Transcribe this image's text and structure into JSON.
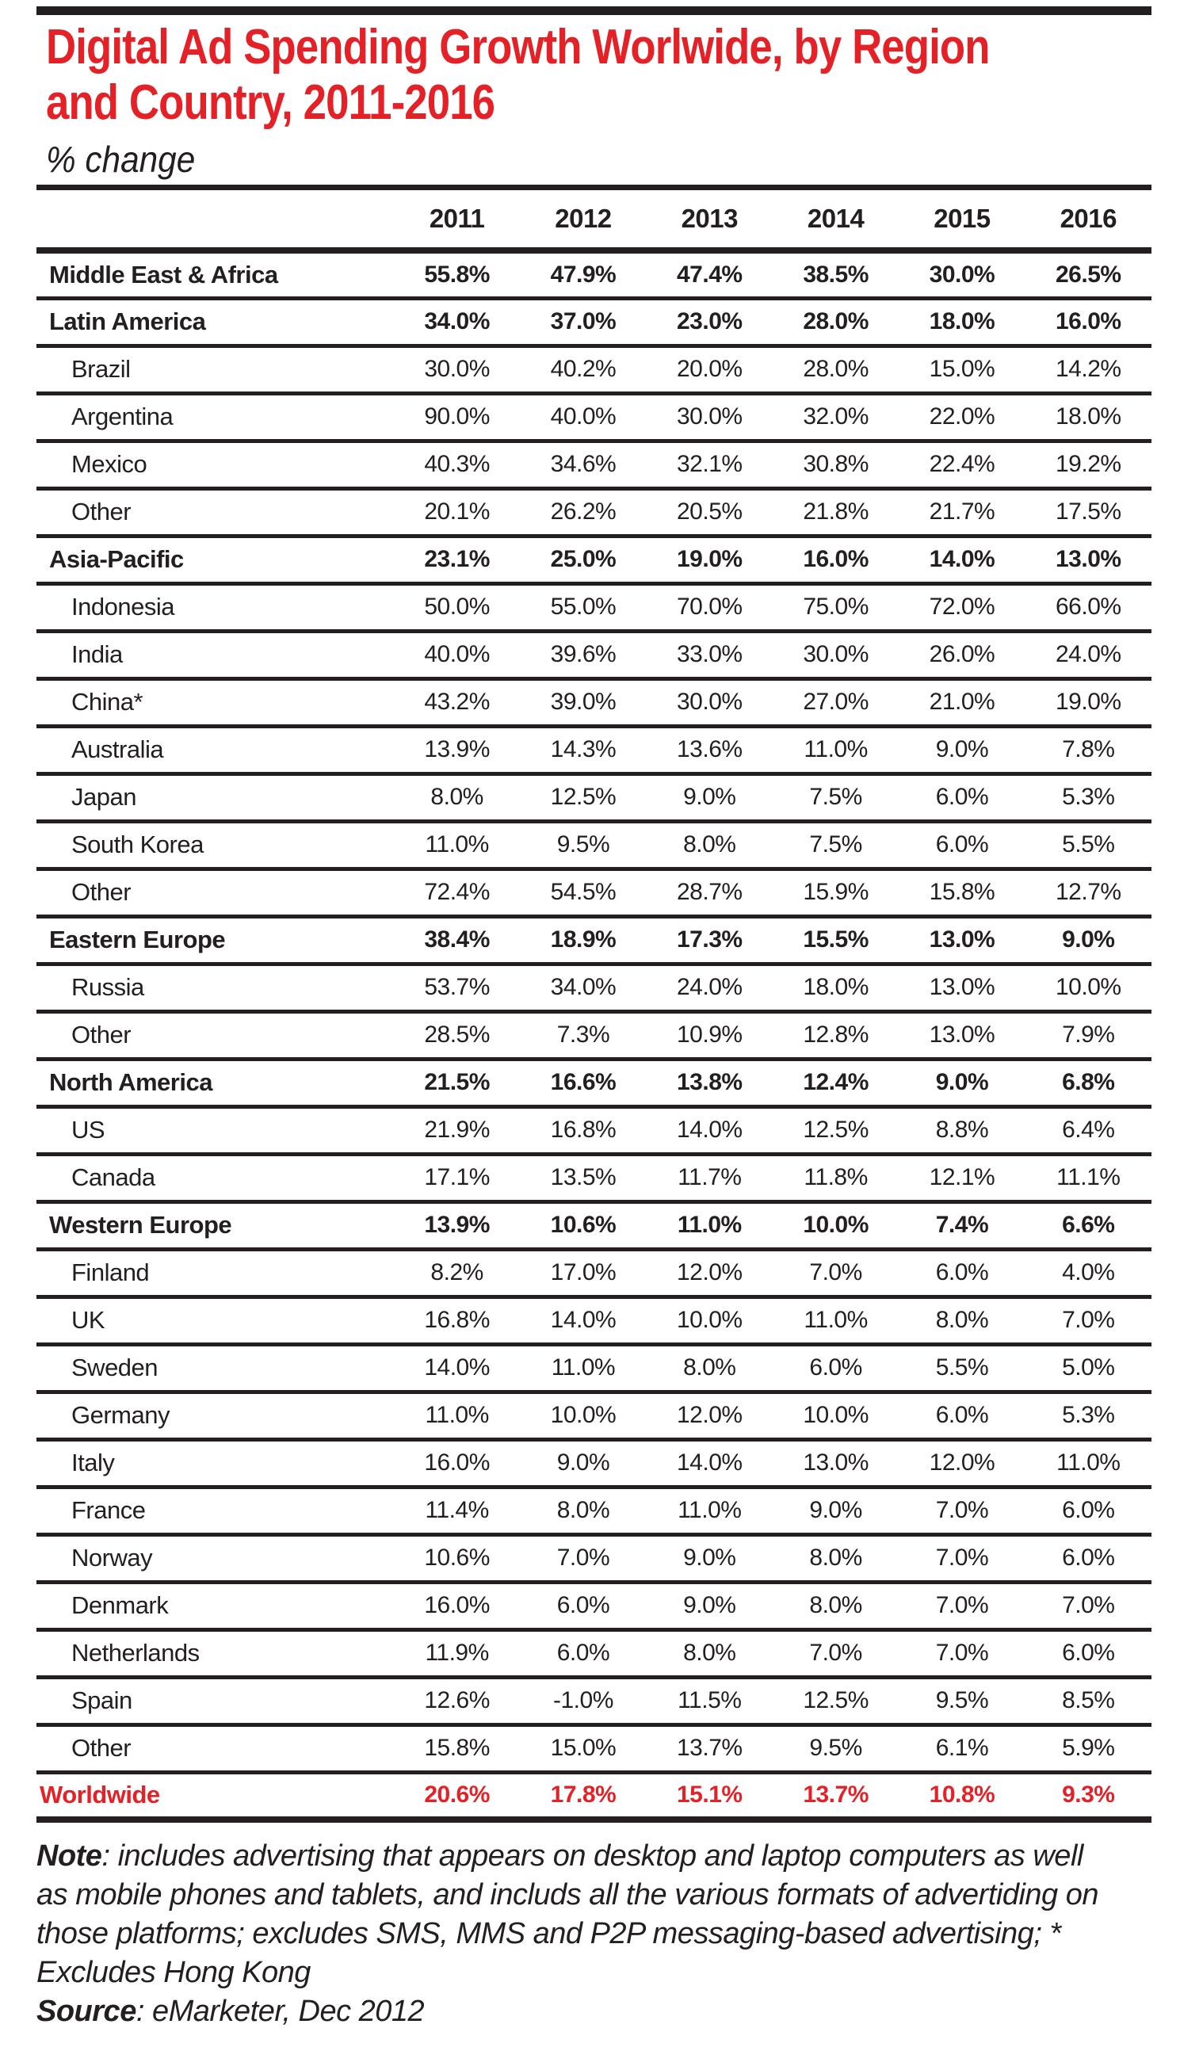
{
  "title": {
    "line1": "Digital Ad Spending Growth Worlwide, by Region",
    "line2": "and Country, 2011-2016"
  },
  "subtitle": "% change",
  "colors": {
    "accent_red": "#e32127",
    "text_black": "#231f20"
  },
  "chart_data": {
    "type": "table",
    "title": "Digital Ad Spending Growth Worlwide, by Region and Country, 2011-2016",
    "unit": "% change",
    "columns": [
      "2011",
      "2012",
      "2013",
      "2014",
      "2015",
      "2016"
    ],
    "rows": [
      {
        "label": "Middle East & Africa",
        "style": "region",
        "values": [
          "55.8%",
          "47.9%",
          "47.4%",
          "38.5%",
          "30.0%",
          "26.5%"
        ]
      },
      {
        "label": "Latin America",
        "style": "region",
        "values": [
          "34.0%",
          "37.0%",
          "23.0%",
          "28.0%",
          "18.0%",
          "16.0%"
        ]
      },
      {
        "label": "Brazil",
        "style": "country",
        "values": [
          "30.0%",
          "40.2%",
          "20.0%",
          "28.0%",
          "15.0%",
          "14.2%"
        ]
      },
      {
        "label": "Argentina",
        "style": "country",
        "values": [
          "90.0%",
          "40.0%",
          "30.0%",
          "32.0%",
          "22.0%",
          "18.0%"
        ]
      },
      {
        "label": "Mexico",
        "style": "country",
        "values": [
          "40.3%",
          "34.6%",
          "32.1%",
          "30.8%",
          "22.4%",
          "19.2%"
        ]
      },
      {
        "label": "Other",
        "style": "country",
        "values": [
          "20.1%",
          "26.2%",
          "20.5%",
          "21.8%",
          "21.7%",
          "17.5%"
        ]
      },
      {
        "label": "Asia-Pacific",
        "style": "region",
        "values": [
          "23.1%",
          "25.0%",
          "19.0%",
          "16.0%",
          "14.0%",
          "13.0%"
        ]
      },
      {
        "label": "Indonesia",
        "style": "country",
        "values": [
          "50.0%",
          "55.0%",
          "70.0%",
          "75.0%",
          "72.0%",
          "66.0%"
        ]
      },
      {
        "label": "India",
        "style": "country",
        "values": [
          "40.0%",
          "39.6%",
          "33.0%",
          "30.0%",
          "26.0%",
          "24.0%"
        ]
      },
      {
        "label": "China*",
        "style": "country",
        "values": [
          "43.2%",
          "39.0%",
          "30.0%",
          "27.0%",
          "21.0%",
          "19.0%"
        ]
      },
      {
        "label": "Australia",
        "style": "country",
        "values": [
          "13.9%",
          "14.3%",
          "13.6%",
          "11.0%",
          "9.0%",
          "7.8%"
        ]
      },
      {
        "label": "Japan",
        "style": "country",
        "values": [
          "8.0%",
          "12.5%",
          "9.0%",
          "7.5%",
          "6.0%",
          "5.3%"
        ]
      },
      {
        "label": "South Korea",
        "style": "country",
        "values": [
          "11.0%",
          "9.5%",
          "8.0%",
          "7.5%",
          "6.0%",
          "5.5%"
        ]
      },
      {
        "label": "Other",
        "style": "country",
        "values": [
          "72.4%",
          "54.5%",
          "28.7%",
          "15.9%",
          "15.8%",
          "12.7%"
        ]
      },
      {
        "label": "Eastern Europe",
        "style": "region",
        "values": [
          "38.4%",
          "18.9%",
          "17.3%",
          "15.5%",
          "13.0%",
          "9.0%"
        ]
      },
      {
        "label": "Russia",
        "style": "country",
        "values": [
          "53.7%",
          "34.0%",
          "24.0%",
          "18.0%",
          "13.0%",
          "10.0%"
        ]
      },
      {
        "label": "Other",
        "style": "country",
        "values": [
          "28.5%",
          "7.3%",
          "10.9%",
          "12.8%",
          "13.0%",
          "7.9%"
        ]
      },
      {
        "label": "North America",
        "style": "region",
        "values": [
          "21.5%",
          "16.6%",
          "13.8%",
          "12.4%",
          "9.0%",
          "6.8%"
        ]
      },
      {
        "label": "US",
        "style": "country",
        "values": [
          "21.9%",
          "16.8%",
          "14.0%",
          "12.5%",
          "8.8%",
          "6.4%"
        ]
      },
      {
        "label": "Canada",
        "style": "country",
        "values": [
          "17.1%",
          "13.5%",
          "11.7%",
          "11.8%",
          "12.1%",
          "11.1%"
        ]
      },
      {
        "label": "Western Europe",
        "style": "region",
        "values": [
          "13.9%",
          "10.6%",
          "11.0%",
          "10.0%",
          "7.4%",
          "6.6%"
        ]
      },
      {
        "label": "Finland",
        "style": "country",
        "values": [
          "8.2%",
          "17.0%",
          "12.0%",
          "7.0%",
          "6.0%",
          "4.0%"
        ]
      },
      {
        "label": "UK",
        "style": "country",
        "values": [
          "16.8%",
          "14.0%",
          "10.0%",
          "11.0%",
          "8.0%",
          "7.0%"
        ]
      },
      {
        "label": "Sweden",
        "style": "country",
        "values": [
          "14.0%",
          "11.0%",
          "8.0%",
          "6.0%",
          "5.5%",
          "5.0%"
        ]
      },
      {
        "label": "Germany",
        "style": "country",
        "values": [
          "11.0%",
          "10.0%",
          "12.0%",
          "10.0%",
          "6.0%",
          "5.3%"
        ]
      },
      {
        "label": "Italy",
        "style": "country",
        "values": [
          "16.0%",
          "9.0%",
          "14.0%",
          "13.0%",
          "12.0%",
          "11.0%"
        ]
      },
      {
        "label": "France",
        "style": "country",
        "values": [
          "11.4%",
          "8.0%",
          "11.0%",
          "9.0%",
          "7.0%",
          "6.0%"
        ]
      },
      {
        "label": "Norway",
        "style": "country",
        "values": [
          "10.6%",
          "7.0%",
          "9.0%",
          "8.0%",
          "7.0%",
          "6.0%"
        ]
      },
      {
        "label": "Denmark",
        "style": "country",
        "values": [
          "16.0%",
          "6.0%",
          "9.0%",
          "8.0%",
          "7.0%",
          "7.0%"
        ]
      },
      {
        "label": "Netherlands",
        "style": "country",
        "values": [
          "11.9%",
          "6.0%",
          "8.0%",
          "7.0%",
          "7.0%",
          "6.0%"
        ]
      },
      {
        "label": "Spain",
        "style": "country",
        "values": [
          "12.6%",
          "-1.0%",
          "11.5%",
          "12.5%",
          "9.5%",
          "8.5%"
        ]
      },
      {
        "label": "Other",
        "style": "country",
        "values": [
          "15.8%",
          "15.0%",
          "13.7%",
          "9.5%",
          "6.1%",
          "5.9%"
        ]
      },
      {
        "label": "Worldwide",
        "style": "worldwide",
        "values": [
          "20.6%",
          "17.8%",
          "15.1%",
          "13.7%",
          "10.8%",
          "9.3%"
        ]
      }
    ]
  },
  "footnote": {
    "note_label": "Note",
    "note_text": ": includes advertising that appears on desktop and laptop computers as well as mobile phones and tablets, and includs all the various formats of advertiding on those platforms; excludes SMS, MMS and P2P messaging-based advertising; * Excludes Hong Kong",
    "source_label": "Source",
    "source_text": ": eMarketer, Dec 2012"
  }
}
